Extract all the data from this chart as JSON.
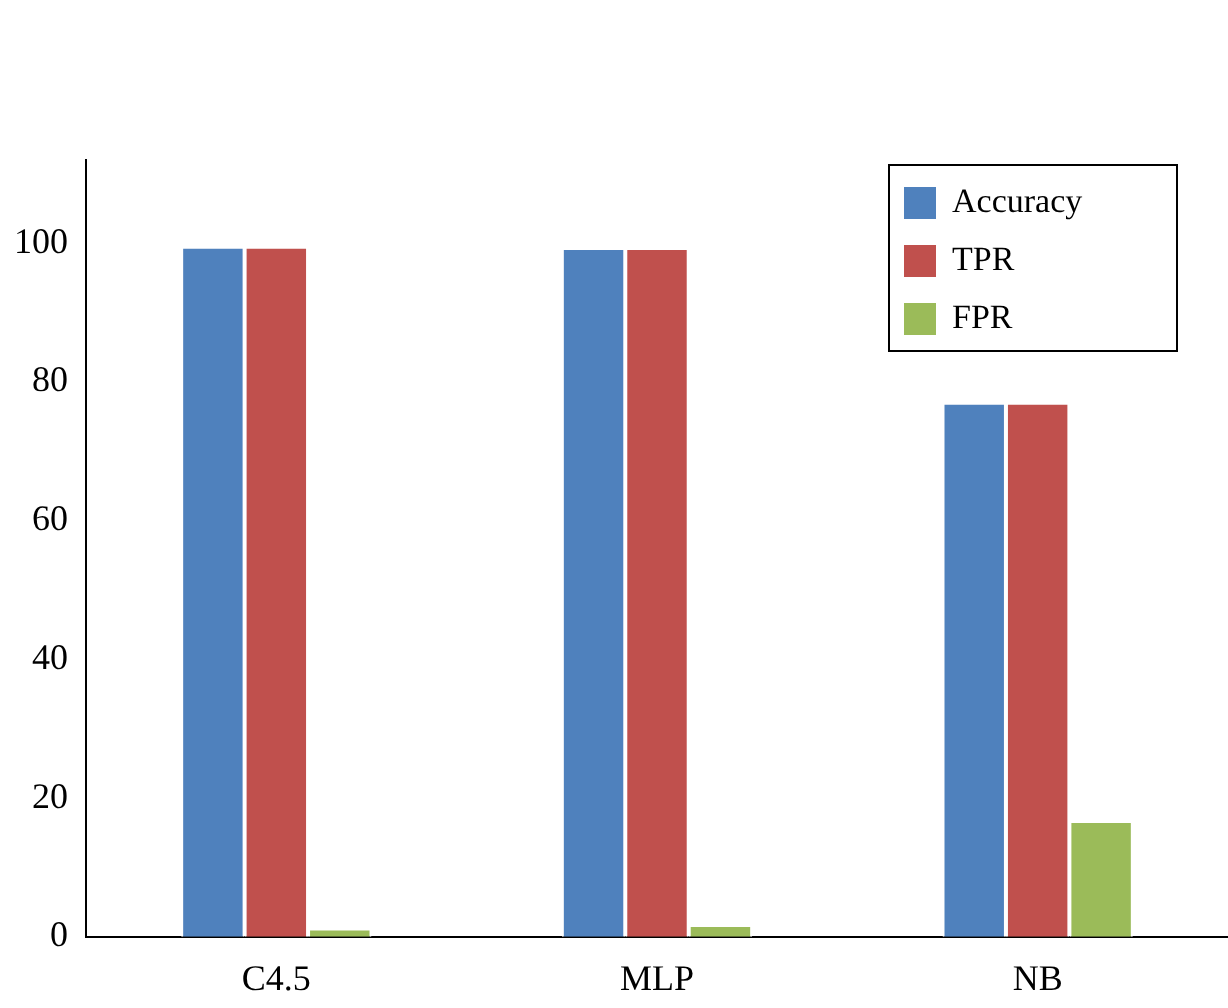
{
  "chart_data": {
    "type": "bar",
    "categories": [
      "C4.5",
      "MLP",
      "NB"
    ],
    "series": [
      {
        "name": "Accuracy",
        "color": "#4f81bd",
        "values": [
          99.5,
          99.3,
          77
        ]
      },
      {
        "name": "TPR",
        "color": "#c0504d",
        "values": [
          99.5,
          99.3,
          77
        ]
      },
      {
        "name": "FPR",
        "color": "#9bbb59",
        "values": [
          1.2,
          1.7,
          16.7
        ]
      }
    ],
    "ylim": [
      0,
      112
    ],
    "yticks": [
      0,
      20,
      40,
      60,
      80,
      100
    ],
    "grid": false,
    "legend": "top right"
  }
}
